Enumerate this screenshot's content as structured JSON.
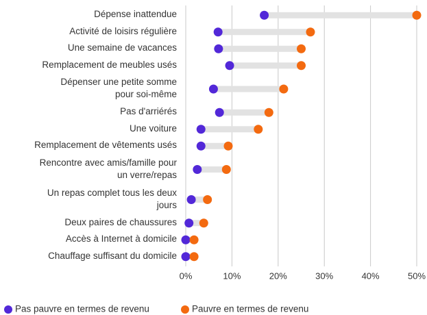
{
  "chart_data": {
    "type": "dumbbell",
    "categories": [
      "Dépense inattendue",
      "Activité de loisirs régulière",
      "Une semaine de vacances",
      "Remplacement de meubles usés",
      "Dépenser une petite somme\npour soi-même",
      "Pas d'arriérés",
      "Une voiture",
      "Remplacement de vêtements usés",
      "Rencontre avec amis/famille pour\nun verre/repas",
      "Un repas complet tous les deux\njours",
      "Deux paires de chaussures",
      "Accès à Internet à domicile",
      "Chauffage suffisant du domicile"
    ],
    "series": [
      {
        "name": "Pas pauvre en termes de revenu",
        "color": "#5228d8",
        "values": [
          17,
          7,
          7.1,
          9.5,
          6,
          7.3,
          3.3,
          3.3,
          2.5,
          1.2,
          0.7,
          0,
          0
        ]
      },
      {
        "name": "Pauvre en termes de revenu",
        "color": "#f36a10",
        "values": [
          50,
          27,
          25,
          25,
          21.2,
          18,
          15.7,
          9.2,
          8.8,
          4.7,
          3.9,
          1.8,
          1.8
        ]
      }
    ],
    "xlim": [
      0,
      50
    ],
    "xticks": [
      {
        "value": 0,
        "label": "0%"
      },
      {
        "value": 10,
        "label": "10%"
      },
      {
        "value": 20,
        "label": "20%"
      },
      {
        "value": 30,
        "label": "30%"
      },
      {
        "value": 40,
        "label": "40%"
      },
      {
        "value": 50,
        "label": "50%"
      }
    ],
    "grid": true
  }
}
